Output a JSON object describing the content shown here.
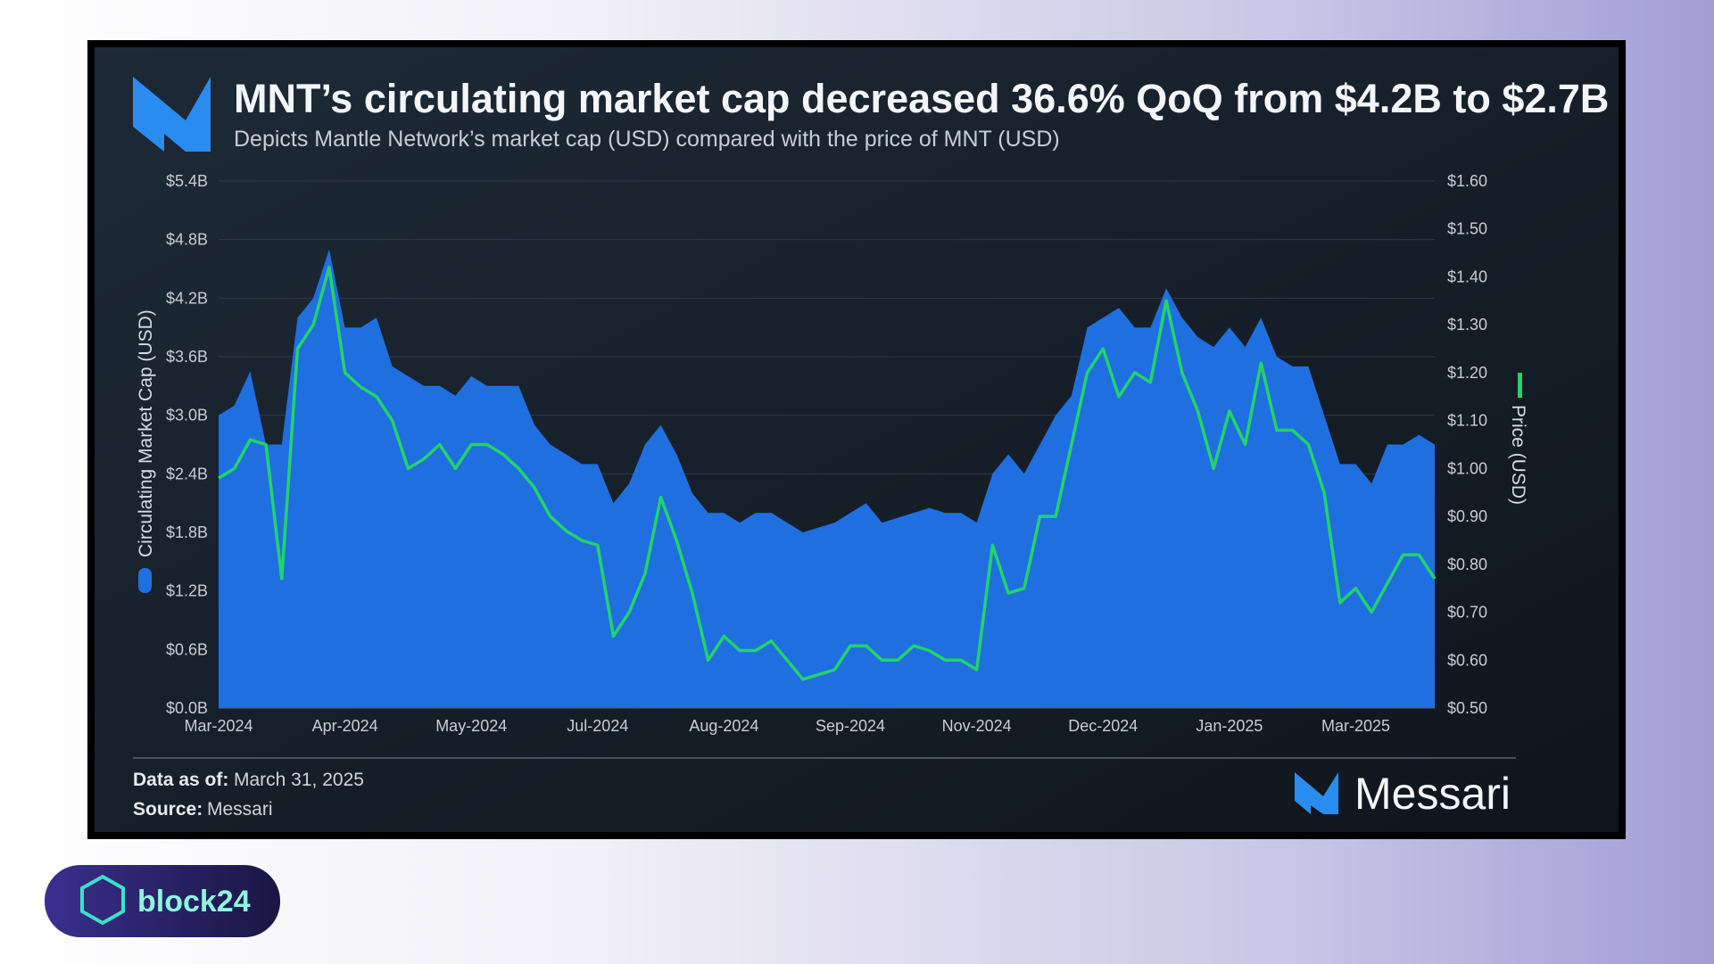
{
  "chart_data": {
    "type": "area-line",
    "title": "MNT’s circulating market cap decreased 36.6% QoQ from $4.2B to $2.7B",
    "subtitle": "Depicts Mantle Network’s market cap (USD) compared with the price of MNT (USD)",
    "y_label": "Circulating Market Cap (USD)",
    "y2_label": "Price (USD)",
    "categories": [
      "Mar-2024",
      null,
      null,
      null,
      null,
      null,
      null,
      null,
      "Apr-2024",
      null,
      null,
      null,
      null,
      null,
      null,
      null,
      "May-2024",
      null,
      null,
      null,
      null,
      null,
      null,
      null,
      "Jul-2024",
      null,
      null,
      null,
      null,
      null,
      null,
      null,
      "Aug-2024",
      null,
      null,
      null,
      null,
      null,
      null,
      null,
      "Sep-2024",
      null,
      null,
      null,
      null,
      null,
      null,
      null,
      "Nov-2024",
      null,
      null,
      null,
      null,
      null,
      null,
      null,
      "Dec-2024",
      null,
      null,
      null,
      null,
      null,
      null,
      null,
      "Jan-2025",
      null,
      null,
      null,
      null,
      null,
      null,
      null,
      "Mar-2025",
      null,
      null,
      null,
      null,
      null
    ],
    "series": [
      {
        "name": "Circulating Market Cap (USD)",
        "color": "#1f6fe0",
        "values": [
          3.0,
          3.1,
          3.45,
          2.7,
          2.7,
          4.0,
          4.2,
          4.7,
          3.9,
          3.9,
          4.0,
          3.5,
          3.4,
          3.3,
          3.3,
          3.2,
          3.4,
          3.3,
          3.3,
          3.3,
          2.9,
          2.7,
          2.6,
          2.5,
          2.5,
          2.1,
          2.3,
          2.7,
          2.9,
          2.6,
          2.2,
          2.0,
          2.0,
          1.9,
          2.0,
          2.0,
          1.9,
          1.8,
          1.85,
          1.9,
          2.0,
          2.1,
          1.9,
          1.95,
          2.0,
          2.05,
          2.0,
          2.0,
          1.9,
          2.4,
          2.6,
          2.4,
          2.7,
          3.0,
          3.2,
          3.9,
          4.0,
          4.1,
          3.9,
          3.9,
          4.3,
          4.0,
          3.8,
          3.7,
          3.9,
          3.7,
          4.0,
          3.6,
          3.5,
          3.5,
          3.0,
          2.5,
          2.5,
          2.3,
          2.7,
          2.7,
          2.8,
          2.7
        ]
      },
      {
        "name": "Price (USD)",
        "color": "#22d36a",
        "axis": "y2",
        "values": [
          0.98,
          1.0,
          1.06,
          1.05,
          0.77,
          1.25,
          1.3,
          1.42,
          1.2,
          1.17,
          1.15,
          1.1,
          1.0,
          1.02,
          1.05,
          1.0,
          1.05,
          1.05,
          1.03,
          1.0,
          0.96,
          0.9,
          0.87,
          0.85,
          0.84,
          0.65,
          0.7,
          0.78,
          0.94,
          0.85,
          0.74,
          0.6,
          0.65,
          0.62,
          0.62,
          0.64,
          0.6,
          0.56,
          0.57,
          0.58,
          0.63,
          0.63,
          0.6,
          0.6,
          0.63,
          0.62,
          0.6,
          0.6,
          0.58,
          0.84,
          0.74,
          0.75,
          0.9,
          0.9,
          1.05,
          1.2,
          1.25,
          1.15,
          1.2,
          1.18,
          1.35,
          1.2,
          1.12,
          1.0,
          1.12,
          1.05,
          1.22,
          1.08,
          1.08,
          1.05,
          0.95,
          0.72,
          0.75,
          0.7,
          0.76,
          0.82,
          0.82,
          0.77
        ]
      }
    ],
    "ylim": [
      0,
      5.4
    ],
    "yticks": [
      {
        "value": 0,
        "label": "$0.0B"
      },
      {
        "value": 0.6,
        "label": "$0.6B"
      },
      {
        "value": 1.2,
        "label": "$1.2B"
      },
      {
        "value": 1.8,
        "label": "$1.8B"
      },
      {
        "value": 2.4,
        "label": "$2.4B"
      },
      {
        "value": 3.0,
        "label": "$3.0B"
      },
      {
        "value": 3.6,
        "label": "$3.6B"
      },
      {
        "value": 4.2,
        "label": "$4.2B"
      },
      {
        "value": 4.8,
        "label": "$4.8B"
      },
      {
        "value": 5.4,
        "label": "$5.4B"
      }
    ],
    "y2lim": [
      0.5,
      1.6
    ],
    "y2ticks": [
      {
        "value": 0.5,
        "label": "$0.50"
      },
      {
        "value": 0.6,
        "label": "$0.60"
      },
      {
        "value": 0.7,
        "label": "$0.70"
      },
      {
        "value": 0.8,
        "label": "$0.80"
      },
      {
        "value": 0.9,
        "label": "$0.90"
      },
      {
        "value": 1.0,
        "label": "$1.00"
      },
      {
        "value": 1.1,
        "label": "$1.10"
      },
      {
        "value": 1.2,
        "label": "$1.20"
      },
      {
        "value": 1.3,
        "label": "$1.30"
      },
      {
        "value": 1.4,
        "label": "$1.40"
      },
      {
        "value": 1.5,
        "label": "$1.50"
      },
      {
        "value": 1.6,
        "label": "$1.60"
      }
    ],
    "grid": true,
    "footer": {
      "date_label": "Data as of:",
      "date": "March 31, 2025",
      "source_label": "Source:",
      "source": "Messari"
    },
    "brand": "Messari"
  },
  "badge": "block24"
}
